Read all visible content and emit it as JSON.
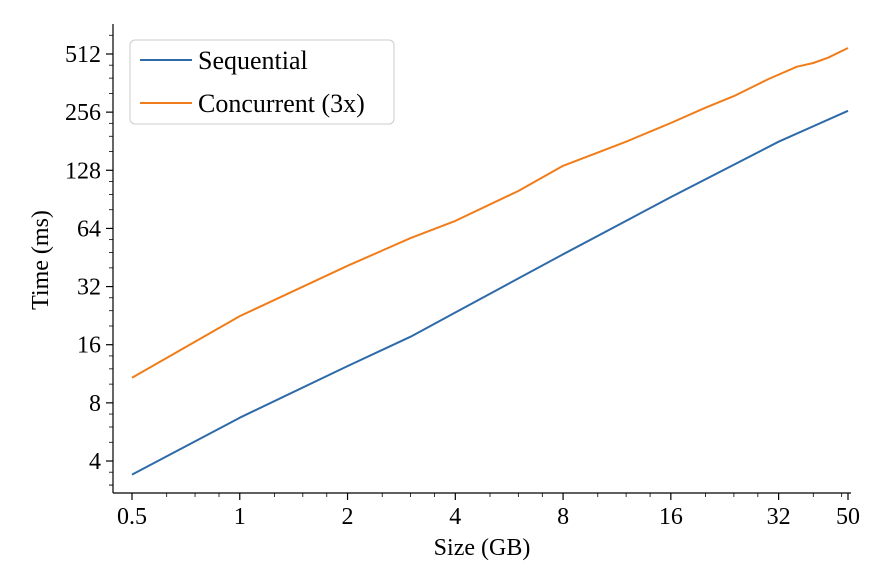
{
  "chart_data": {
    "type": "line",
    "xscale": "log2",
    "yscale": "log2",
    "xlabel": "Size (GB)",
    "ylabel": "Time (ms)",
    "xlim": [
      0.5,
      50
    ],
    "ylim": [
      2.8,
      680
    ],
    "xticks": [
      0.5,
      1,
      2,
      4,
      8,
      16,
      32,
      50
    ],
    "xtick_labels": [
      "0.5",
      "1",
      "2",
      "4",
      "8",
      "16",
      "32",
      "50"
    ],
    "yticks": [
      4,
      8,
      16,
      32,
      64,
      128,
      256,
      512
    ],
    "ytick_labels": [
      "4",
      "8",
      "16",
      "32",
      "64",
      "128",
      "256",
      "512"
    ],
    "grid": false,
    "legend_position": "top-left",
    "series": [
      {
        "name": "Sequential",
        "color": "#2f6aa8",
        "x": [
          0.5,
          1,
          2,
          3,
          4,
          8,
          16,
          32,
          50
        ],
        "y": [
          3.4,
          6.7,
          12.4,
          17.6,
          23.5,
          47,
          93,
          180,
          260
        ]
      },
      {
        "name": "Concurrent (3x)",
        "color": "#f07d1a",
        "x": [
          0.5,
          1,
          2,
          3,
          4,
          6,
          8,
          10,
          12,
          16,
          20,
          24,
          30,
          36,
          40,
          44,
          50
        ],
        "y": [
          10.8,
          22.5,
          41,
          57,
          70,
          100,
          135,
          158,
          180,
          225,
          270,
          310,
          380,
          440,
          460,
          490,
          550
        ]
      }
    ]
  }
}
